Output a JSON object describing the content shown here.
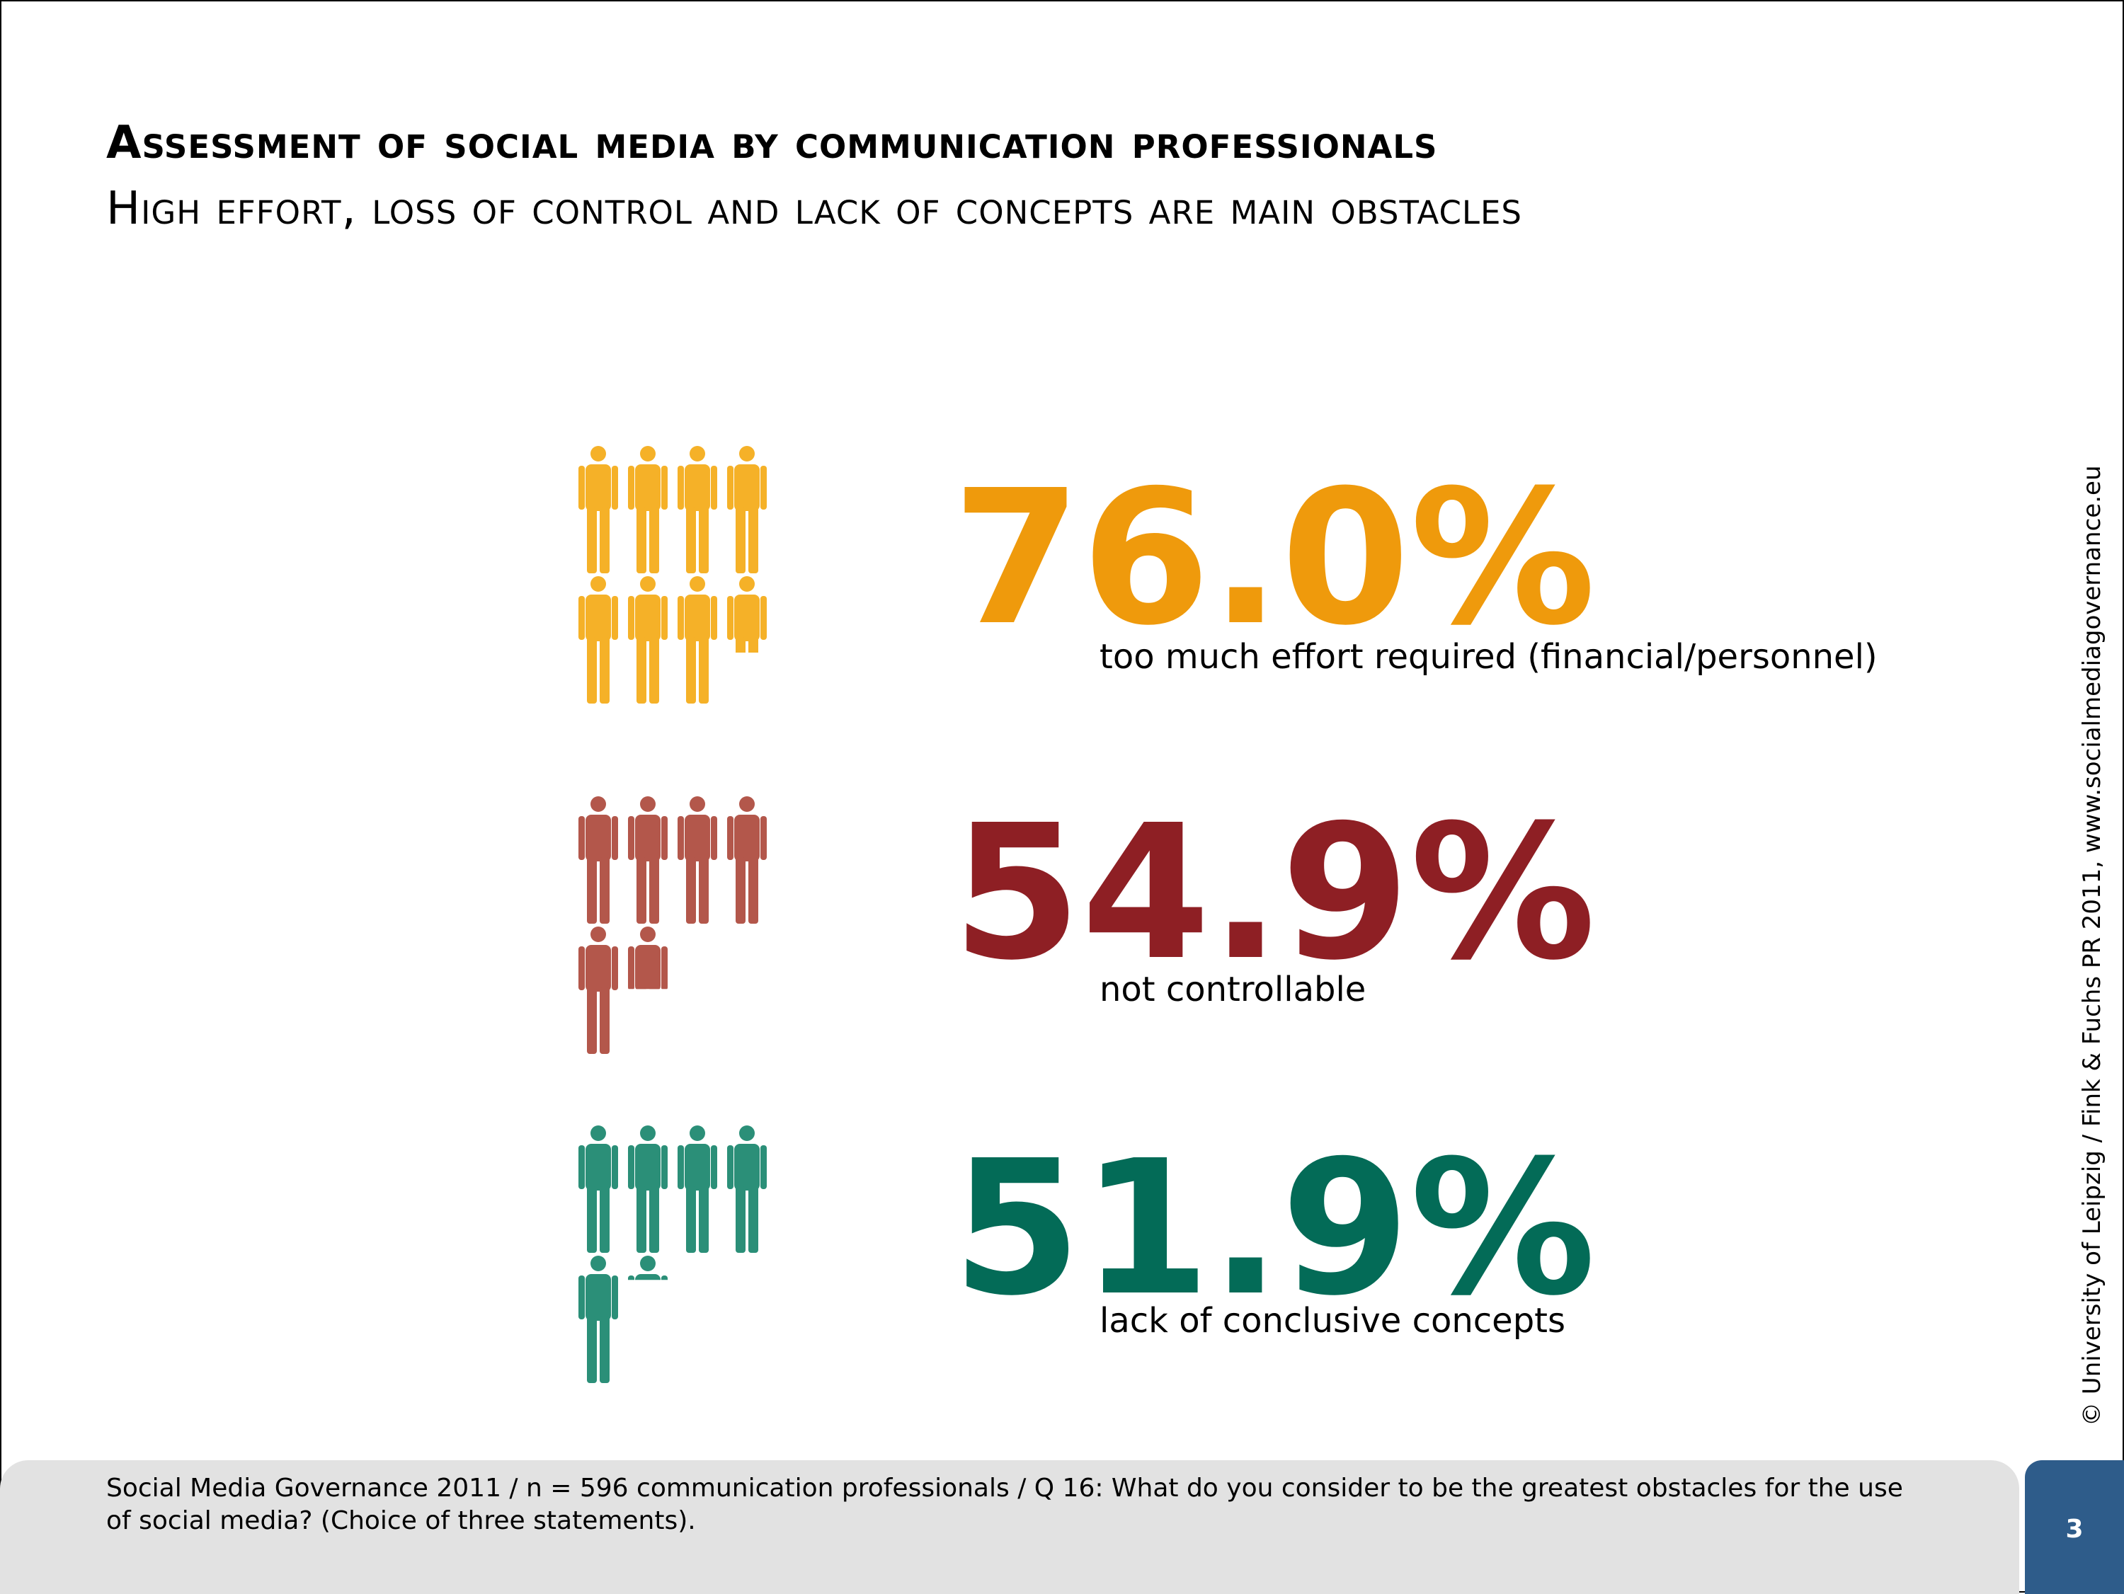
{
  "header": {
    "title": "Assessment of social media by communication professionals",
    "subtitle": "High effort, loss of control and lack of concepts are main obstacles"
  },
  "chart_data": {
    "type": "pictogram",
    "items": [
      {
        "value": 76.0,
        "value_label": "76.0%",
        "label": "too much effort required (financial/personnel)",
        "icon_color": "#F5B128",
        "text_color": "#EF9A0C"
      },
      {
        "value": 54.9,
        "value_label": "54.9%",
        "label": "not controllable",
        "icon_color": "#B3574B",
        "text_color": "#8E1F24"
      },
      {
        "value": 51.9,
        "value_label": "51.9%",
        "label": "lack of conclusive concepts",
        "icon_color": "#2B8F78",
        "text_color": "#036B57"
      }
    ],
    "icon_unit_percent": 10
  },
  "side_note": "© University of Leipzig / Fink & Fuchs PR 2011, www.socialmediagovernance.eu",
  "footer": {
    "source": "Social Media Governance 2011 / n = 596 communication professionals / Q 16: What do you consider to be the greatest obstacles for the use of social media? (Choice of three statements).",
    "page_number": "3"
  },
  "colors": {
    "footer_bg": "#E2E2E2",
    "page_box": "#2E5C8A"
  }
}
